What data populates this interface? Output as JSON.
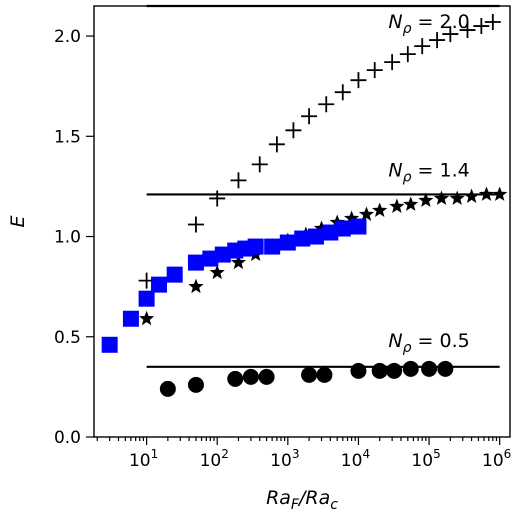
{
  "chart_data": {
    "type": "scatter",
    "xscale": "log",
    "xlim": [
      1.8,
      1400000
    ],
    "ylim": [
      0.0,
      2.15
    ],
    "xlabel": "Ra_F/Ra_c",
    "ylabel": "E",
    "x_ticks": [
      {
        "value": 10,
        "base": "10",
        "exp": "1"
      },
      {
        "value": 100,
        "base": "10",
        "exp": "2"
      },
      {
        "value": 1000,
        "base": "10",
        "exp": "3"
      },
      {
        "value": 10000,
        "base": "10",
        "exp": "4"
      },
      {
        "value": 100000,
        "base": "10",
        "exp": "5"
      },
      {
        "value": 1000000,
        "base": "10",
        "exp": "6"
      }
    ],
    "y_ticks": [
      "0.0",
      "0.5",
      "1.0",
      "1.5",
      "2.0"
    ],
    "grid": false,
    "reference_lines": [
      {
        "label_prefix": "N",
        "label_sub": "ρ",
        "label_value": " = 2.0",
        "y": 2.15,
        "x_start": 10,
        "x_end": 1000000,
        "label_x": 100000,
        "label_y": 2.04
      },
      {
        "label_prefix": "N",
        "label_sub": "ρ",
        "label_value": " = 1.4",
        "y": 1.21,
        "x_start": 10,
        "x_end": 1000000,
        "label_x": 100000,
        "label_y": 1.3
      },
      {
        "label_prefix": "N",
        "label_sub": "ρ",
        "label_value": " = 0.5",
        "y": 0.35,
        "x_start": 10,
        "x_end": 1000000,
        "label_x": 100000,
        "label_y": 0.45
      }
    ],
    "series": [
      {
        "marker": "plus",
        "color": "#000000",
        "x": [
          10,
          50,
          100,
          200,
          400,
          700,
          1200,
          2000,
          3500,
          6000,
          10000,
          17000,
          30000,
          50000,
          80000,
          130000,
          200000,
          350000,
          550000,
          800000
        ],
        "y": [
          0.78,
          1.06,
          1.19,
          1.28,
          1.36,
          1.46,
          1.53,
          1.6,
          1.66,
          1.72,
          1.78,
          1.83,
          1.87,
          1.91,
          1.95,
          1.98,
          2.01,
          2.03,
          2.05,
          2.07
        ]
      },
      {
        "marker": "star",
        "color": "#000000",
        "x": [
          10,
          50,
          100,
          200,
          350,
          600,
          1000,
          1800,
          3000,
          5000,
          8000,
          13000,
          20000,
          35000,
          55000,
          90000,
          150000,
          250000,
          400000,
          650000,
          1000000
        ],
        "y": [
          0.59,
          0.75,
          0.82,
          0.87,
          0.91,
          0.95,
          0.98,
          1.01,
          1.04,
          1.07,
          1.09,
          1.11,
          1.13,
          1.15,
          1.16,
          1.18,
          1.19,
          1.19,
          1.2,
          1.21,
          1.21
        ]
      },
      {
        "marker": "square",
        "color": "#0000ff",
        "x": [
          3,
          6,
          10,
          15,
          25,
          50,
          80,
          120,
          180,
          250,
          350,
          600,
          1000,
          1600,
          2500,
          4000,
          6000,
          10000
        ],
        "y": [
          0.46,
          0.59,
          0.69,
          0.76,
          0.81,
          0.87,
          0.89,
          0.91,
          0.93,
          0.94,
          0.95,
          0.95,
          0.97,
          0.99,
          1.0,
          1.02,
          1.04,
          1.05
        ]
      },
      {
        "marker": "circle",
        "color": "#000000",
        "x": [
          20,
          50,
          180,
          300,
          500,
          2000,
          3300,
          10000,
          20000,
          32000,
          55000,
          100000,
          170000
        ],
        "y": [
          0.24,
          0.26,
          0.29,
          0.3,
          0.3,
          0.31,
          0.31,
          0.33,
          0.33,
          0.33,
          0.34,
          0.34,
          0.34
        ]
      }
    ]
  }
}
